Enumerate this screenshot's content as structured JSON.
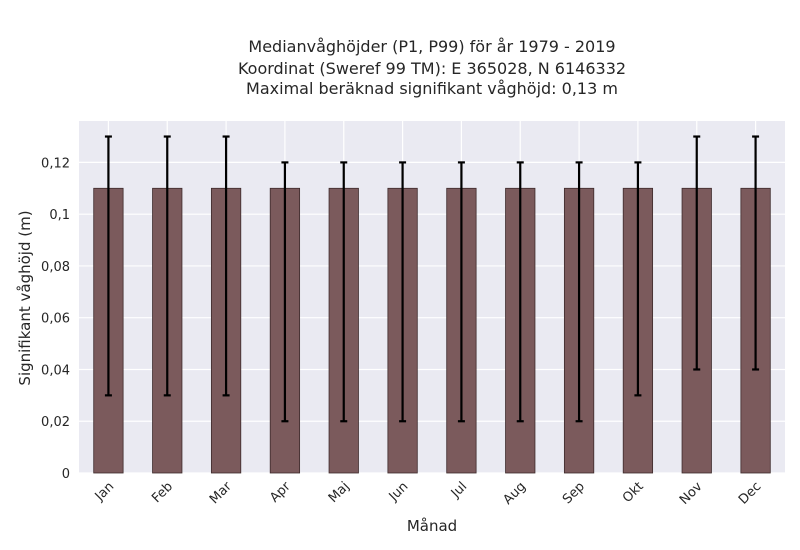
{
  "chart_data": {
    "type": "bar",
    "title_lines": [
      "Medianvåghöjder (P1, P99) för år 1979 - 2019",
      "Koordinat (Sweref 99 TM): E 365028, N 6146332",
      "Maximal beräknad signifikant våghöjd: 0,13 m"
    ],
    "xlabel": "Månad",
    "ylabel": "Signifikant våghöjd (m)",
    "categories": [
      "Jan",
      "Feb",
      "Mar",
      "Apr",
      "Maj",
      "Jun",
      "Jul",
      "Aug",
      "Sep",
      "Okt",
      "Nov",
      "Dec"
    ],
    "values": [
      0.11,
      0.11,
      0.11,
      0.11,
      0.11,
      0.11,
      0.11,
      0.11,
      0.11,
      0.11,
      0.11,
      0.11
    ],
    "error_low": [
      0.03,
      0.03,
      0.03,
      0.02,
      0.02,
      0.02,
      0.02,
      0.02,
      0.02,
      0.03,
      0.04,
      0.04
    ],
    "error_high": [
      0.13,
      0.13,
      0.13,
      0.12,
      0.12,
      0.12,
      0.12,
      0.12,
      0.12,
      0.12,
      0.13,
      0.13
    ],
    "yticks": [
      0,
      0.02,
      0.04,
      0.06,
      0.08,
      0.1,
      0.12
    ],
    "ytick_labels": [
      "0",
      "0,02",
      "0,04",
      "0,06",
      "0,08",
      "0,1",
      "0,12"
    ],
    "ylim": [
      0,
      0.136
    ],
    "grid": true,
    "colors": {
      "bar": "#7b5a5c",
      "bar_edge": "#3d2a2b",
      "error": "#000000",
      "plot_bg": "#eaeaf2",
      "grid": "#ffffff"
    }
  }
}
